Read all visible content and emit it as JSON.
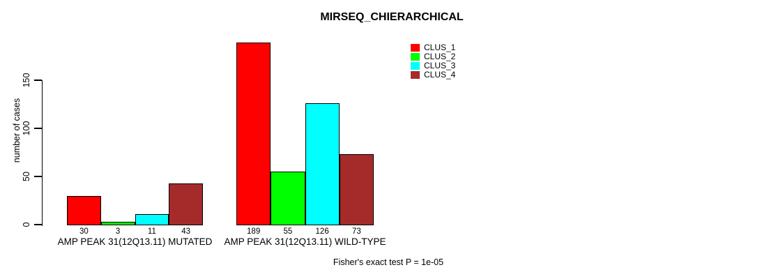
{
  "page": {
    "background": "#ffffff",
    "text_color": "#000000"
  },
  "chart_data": {
    "type": "bar",
    "title": "MIRSEQ_CHIERARCHICAL",
    "xlabel": "",
    "ylabel": "number of cases",
    "yticks": [
      0,
      50,
      100,
      150
    ],
    "ylim": [
      0,
      189
    ],
    "grid": false,
    "legend_position": "top-right-inside",
    "categories": [
      "AMP PEAK 31(12Q13.11) MUTATED",
      "AMP PEAK 31(12Q13.11) WILD-TYPE"
    ],
    "series": [
      {
        "name": "CLUS_1",
        "color": "#FF0000",
        "values": [
          30,
          189
        ]
      },
      {
        "name": "CLUS_2",
        "color": "#00FF00",
        "values": [
          3,
          55
        ]
      },
      {
        "name": "CLUS_3",
        "color": "#00FFFF",
        "values": [
          11,
          126
        ]
      },
      {
        "name": "CLUS_4",
        "color": "#A52A2A",
        "values": [
          43,
          73
        ]
      }
    ],
    "bar_value_labels": [
      [
        30,
        3,
        11,
        43
      ],
      [
        189,
        55,
        126,
        73
      ]
    ],
    "annotation": "Fisher's exact test P = 1e-05"
  }
}
